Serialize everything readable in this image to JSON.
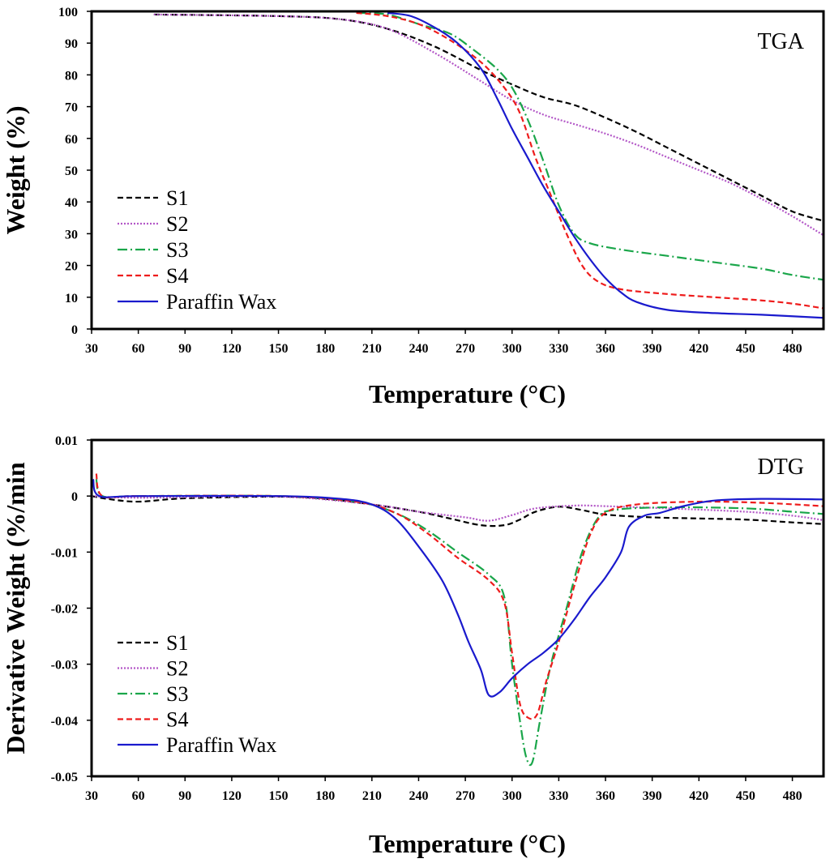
{
  "chart_data": [
    {
      "type": "line",
      "panel_label": "TGA",
      "xlabel": "Temperature (°C)",
      "ylabel": "Weight (%)",
      "xlim": [
        30,
        500
      ],
      "ylim": [
        0,
        100
      ],
      "xticks": [
        30,
        60,
        90,
        120,
        150,
        180,
        210,
        240,
        270,
        300,
        330,
        360,
        390,
        420,
        450,
        480
      ],
      "yticks": [
        0,
        10,
        20,
        30,
        40,
        50,
        60,
        70,
        80,
        90,
        100
      ],
      "xtick_labels": [
        "30",
        "60",
        "90",
        "120",
        "150",
        "180",
        "210",
        "240",
        "270",
        "300",
        "330",
        "360",
        "390",
        "420",
        "450",
        "480"
      ],
      "ytick_labels": [
        "0",
        "10",
        "20",
        "30",
        "40",
        "50",
        "60",
        "70",
        "80",
        "90",
        "100"
      ],
      "legend_position": "bottom-left",
      "series": [
        {
          "name": "S1",
          "color": "#000000",
          "dash": "dashed",
          "points": [
            [
              70,
              99
            ],
            [
              150,
              98.5
            ],
            [
              190,
              97.5
            ],
            [
              220,
              94.5
            ],
            [
              250,
              89
            ],
            [
              280,
              81.5
            ],
            [
              300,
              77
            ],
            [
              320,
              73
            ],
            [
              340,
              70.5
            ],
            [
              360,
              66.5
            ],
            [
              380,
              62
            ],
            [
              400,
              57
            ],
            [
              420,
              52
            ],
            [
              440,
              47
            ],
            [
              460,
              42
            ],
            [
              480,
              37
            ],
            [
              500,
              34
            ]
          ]
        },
        {
          "name": "S2",
          "color": "#b357c7",
          "dash": "dotted",
          "points": [
            [
              70,
              99
            ],
            [
              150,
              98.5
            ],
            [
              190,
              97.5
            ],
            [
              220,
              94.5
            ],
            [
              250,
              87
            ],
            [
              280,
              78
            ],
            [
              300,
              72
            ],
            [
              320,
              67.5
            ],
            [
              340,
              64.5
            ],
            [
              360,
              61.5
            ],
            [
              380,
              58
            ],
            [
              400,
              54
            ],
            [
              420,
              50
            ],
            [
              440,
              46
            ],
            [
              460,
              41
            ],
            [
              480,
              35.5
            ],
            [
              500,
              29.5
            ]
          ]
        },
        {
          "name": "S3",
          "color": "#1aa64a",
          "dash": "dashdot",
          "points": [
            [
              200,
              99.5
            ],
            [
              220,
              99
            ],
            [
              240,
              96
            ],
            [
              260,
              93
            ],
            [
              275,
              88
            ],
            [
              290,
              82
            ],
            [
              300,
              76
            ],
            [
              310,
              66
            ],
            [
              320,
              53
            ],
            [
              330,
              39
            ],
            [
              340,
              30
            ],
            [
              350,
              27
            ],
            [
              370,
              25
            ],
            [
              400,
              23
            ],
            [
              430,
              21
            ],
            [
              460,
              19
            ],
            [
              480,
              17
            ],
            [
              500,
              15.5
            ]
          ]
        },
        {
          "name": "S4",
          "color": "#ee1c1c",
          "dash": "dashed",
          "points": [
            [
              200,
              99.5
            ],
            [
              220,
              98.5
            ],
            [
              240,
              96
            ],
            [
              260,
              91
            ],
            [
              280,
              84
            ],
            [
              295,
              76
            ],
            [
              305,
              68
            ],
            [
              315,
              54
            ],
            [
              325,
              42
            ],
            [
              335,
              30
            ],
            [
              345,
              20
            ],
            [
              355,
              15
            ],
            [
              370,
              12.5
            ],
            [
              400,
              11
            ],
            [
              430,
              10
            ],
            [
              460,
              9
            ],
            [
              480,
              8
            ],
            [
              500,
              6.5
            ]
          ]
        },
        {
          "name": "Paraffin Wax",
          "color": "#1a1acd",
          "dash": "solid",
          "points": [
            [
              220,
              99.5
            ],
            [
              235,
              98.5
            ],
            [
              250,
              95
            ],
            [
              265,
              90
            ],
            [
              280,
              82
            ],
            [
              290,
              73
            ],
            [
              300,
              63
            ],
            [
              310,
              54
            ],
            [
              320,
              45
            ],
            [
              330,
              37
            ],
            [
              340,
              29
            ],
            [
              350,
              22
            ],
            [
              360,
              16
            ],
            [
              370,
              11.5
            ],
            [
              380,
              8.5
            ],
            [
              400,
              6
            ],
            [
              430,
              5
            ],
            [
              460,
              4.5
            ],
            [
              500,
              3.5
            ]
          ]
        }
      ]
    },
    {
      "type": "line",
      "panel_label": "DTG",
      "xlabel": "Temperature (°C)",
      "ylabel": "Derivative Weight (%/min",
      "xlim": [
        30,
        500
      ],
      "ylim": [
        -0.05,
        0.01
      ],
      "xticks": [
        30,
        60,
        90,
        120,
        150,
        180,
        210,
        240,
        270,
        300,
        330,
        360,
        390,
        420,
        450,
        480
      ],
      "yticks": [
        -0.05,
        -0.04,
        -0.03,
        -0.02,
        -0.01,
        0,
        0.01
      ],
      "xtick_labels": [
        "30",
        "60",
        "90",
        "120",
        "150",
        "180",
        "210",
        "240",
        "270",
        "300",
        "330",
        "360",
        "390",
        "420",
        "450",
        "480"
      ],
      "ytick_labels": [
        "-0.05",
        "-0.04",
        "-0.03",
        "-0.02",
        "-0.01",
        "0",
        "0.01"
      ],
      "legend_position": "bottom-left",
      "series": [
        {
          "name": "S1",
          "color": "#000000",
          "dash": "dashed",
          "points": [
            [
              30,
              0
            ],
            [
              40,
              -0.0005
            ],
            [
              60,
              -0.001
            ],
            [
              90,
              -0.0004
            ],
            [
              150,
              -0.0001
            ],
            [
              180,
              -0.0005
            ],
            [
              210,
              -0.0015
            ],
            [
              240,
              -0.0028
            ],
            [
              260,
              -0.004
            ],
            [
              280,
              -0.0052
            ],
            [
              295,
              -0.0052
            ],
            [
              305,
              -0.0042
            ],
            [
              315,
              -0.0028
            ],
            [
              330,
              -0.0019
            ],
            [
              345,
              -0.0025
            ],
            [
              360,
              -0.0033
            ],
            [
              390,
              -0.0038
            ],
            [
              420,
              -0.004
            ],
            [
              450,
              -0.0042
            ],
            [
              480,
              -0.0047
            ],
            [
              500,
              -0.005
            ]
          ]
        },
        {
          "name": "S2",
          "color": "#b357c7",
          "dash": "dotted",
          "points": [
            [
              30,
              0
            ],
            [
              60,
              -0.0003
            ],
            [
              150,
              -0.0001
            ],
            [
              210,
              -0.0015
            ],
            [
              240,
              -0.0028
            ],
            [
              270,
              -0.0038
            ],
            [
              285,
              -0.0044
            ],
            [
              300,
              -0.0034
            ],
            [
              315,
              -0.0022
            ],
            [
              340,
              -0.0017
            ],
            [
              360,
              -0.0018
            ],
            [
              400,
              -0.0022
            ],
            [
              450,
              -0.0028
            ],
            [
              480,
              -0.0035
            ],
            [
              500,
              -0.0043
            ]
          ]
        },
        {
          "name": "S3",
          "color": "#1aa64a",
          "dash": "dashdot",
          "points": [
            [
              33,
              0.003
            ],
            [
              37,
              0
            ],
            [
              60,
              0
            ],
            [
              150,
              0
            ],
            [
              200,
              -0.001
            ],
            [
              225,
              -0.003
            ],
            [
              245,
              -0.006
            ],
            [
              265,
              -0.01
            ],
            [
              285,
              -0.014
            ],
            [
              295,
              -0.018
            ],
            [
              300,
              -0.03
            ],
            [
              305,
              -0.04
            ],
            [
              309,
              -0.0465
            ],
            [
              313,
              -0.0475
            ],
            [
              318,
              -0.04
            ],
            [
              325,
              -0.03
            ],
            [
              335,
              -0.02
            ],
            [
              345,
              -0.01
            ],
            [
              355,
              -0.004
            ],
            [
              365,
              -0.0025
            ],
            [
              400,
              -0.002
            ],
            [
              450,
              -0.0022
            ],
            [
              480,
              -0.0028
            ],
            [
              500,
              -0.0032
            ]
          ]
        },
        {
          "name": "S4",
          "color": "#ee1c1c",
          "dash": "dashed",
          "points": [
            [
              33,
              0.004
            ],
            [
              37,
              0
            ],
            [
              60,
              0
            ],
            [
              150,
              0
            ],
            [
              200,
              -0.001
            ],
            [
              225,
              -0.003
            ],
            [
              245,
              -0.0065
            ],
            [
              265,
              -0.011
            ],
            [
              285,
              -0.015
            ],
            [
              295,
              -0.019
            ],
            [
              300,
              -0.028
            ],
            [
              305,
              -0.037
            ],
            [
              310,
              -0.0395
            ],
            [
              316,
              -0.039
            ],
            [
              322,
              -0.033
            ],
            [
              330,
              -0.026
            ],
            [
              340,
              -0.016
            ],
            [
              350,
              -0.007
            ],
            [
              360,
              -0.003
            ],
            [
              380,
              -0.0015
            ],
            [
              420,
              -0.001
            ],
            [
              460,
              -0.0012
            ],
            [
              500,
              -0.0018
            ]
          ]
        },
        {
          "name": "Paraffin Wax",
          "color": "#1a1acd",
          "dash": "solid",
          "points": [
            [
              31,
              0.003
            ],
            [
              35,
              0
            ],
            [
              60,
              0
            ],
            [
              150,
              0
            ],
            [
              190,
              -0.0005
            ],
            [
              210,
              -0.0015
            ],
            [
              225,
              -0.004
            ],
            [
              240,
              -0.009
            ],
            [
              255,
              -0.015
            ],
            [
              265,
              -0.021
            ],
            [
              272,
              -0.026
            ],
            [
              280,
              -0.031
            ],
            [
              285,
              -0.0355
            ],
            [
              292,
              -0.035
            ],
            [
              300,
              -0.0325
            ],
            [
              310,
              -0.03
            ],
            [
              320,
              -0.028
            ],
            [
              330,
              -0.0255
            ],
            [
              340,
              -0.022
            ],
            [
              350,
              -0.018
            ],
            [
              360,
              -0.0145
            ],
            [
              370,
              -0.01
            ],
            [
              375,
              -0.0055
            ],
            [
              385,
              -0.0035
            ],
            [
              395,
              -0.003
            ],
            [
              410,
              -0.0018
            ],
            [
              430,
              -0.0008
            ],
            [
              460,
              -0.0005
            ],
            [
              500,
              -0.0006
            ]
          ]
        }
      ]
    }
  ]
}
